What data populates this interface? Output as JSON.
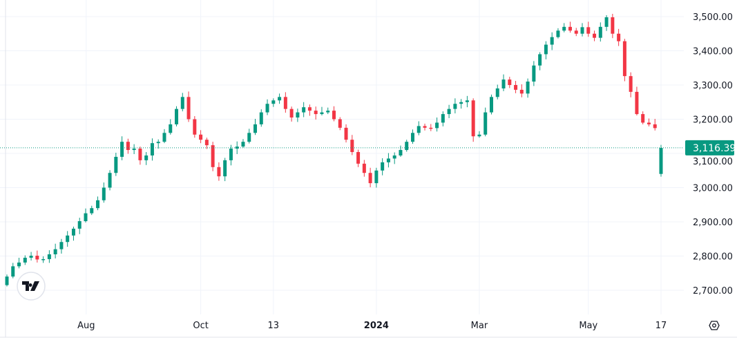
{
  "chart_data": {
    "type": "candlestick",
    "title": "",
    "ylim": [
      2680,
      3530
    ],
    "y_ticks": [
      "3,500.00",
      "3,400.00",
      "3,300.00",
      "3,200.00",
      "3,100.00",
      "3,000.00",
      "2,900.00",
      "2,800.00",
      "2,700.00"
    ],
    "y_tick_values": [
      3500,
      3400,
      3300,
      3200,
      3100,
      3000,
      2900,
      2800,
      2700
    ],
    "x_ticks": [
      {
        "label": "Aug",
        "index": 14,
        "bold": false
      },
      {
        "label": "Oct",
        "index": 32,
        "bold": false
      },
      {
        "label": "13",
        "index": 44,
        "bold": false
      },
      {
        "label": "2024",
        "index": 61,
        "bold": true
      },
      {
        "label": "Mar",
        "index": 78,
        "bold": false
      },
      {
        "label": "May",
        "index": 96,
        "bold": false
      },
      {
        "label": "17",
        "index": 108,
        "bold": false
      }
    ],
    "closes": [
      2740,
      2770,
      2781,
      2795,
      2801,
      2790,
      2791,
      2805,
      2820,
      2841,
      2860,
      2880,
      2902,
      2925,
      2940,
      2963,
      3000,
      3043,
      3090,
      3134,
      3110,
      3114,
      3080,
      3094,
      3130,
      3134,
      3160,
      3185,
      3230,
      3265,
      3200,
      3155,
      3140,
      3124,
      3060,
      3033,
      3080,
      3114,
      3120,
      3134,
      3160,
      3185,
      3220,
      3245,
      3255,
      3265,
      3230,
      3205,
      3220,
      3235,
      3225,
      3215,
      3220,
      3225,
      3200,
      3175,
      3140,
      3104,
      3070,
      3043,
      3013,
      3050,
      3074,
      3085,
      3094,
      3110,
      3134,
      3160,
      3180,
      3175,
      3174,
      3190,
      3215,
      3230,
      3245,
      3250,
      3255,
      3150,
      3155,
      3220,
      3265,
      3290,
      3316,
      3300,
      3286,
      3275,
      3310,
      3357,
      3390,
      3418,
      3440,
      3459,
      3470,
      3459,
      3450,
      3469,
      3450,
      3438,
      3470,
      3498,
      3450,
      3428,
      3326,
      3280,
      3215,
      3190,
      3185,
      3174,
      3116
    ],
    "first_open": 2715,
    "last_open": 3040,
    "last_price": 3116.39,
    "last_price_label": "3,116.39",
    "up_color": "#089981",
    "down_color": "#f23645"
  },
  "logo": "TradingView"
}
